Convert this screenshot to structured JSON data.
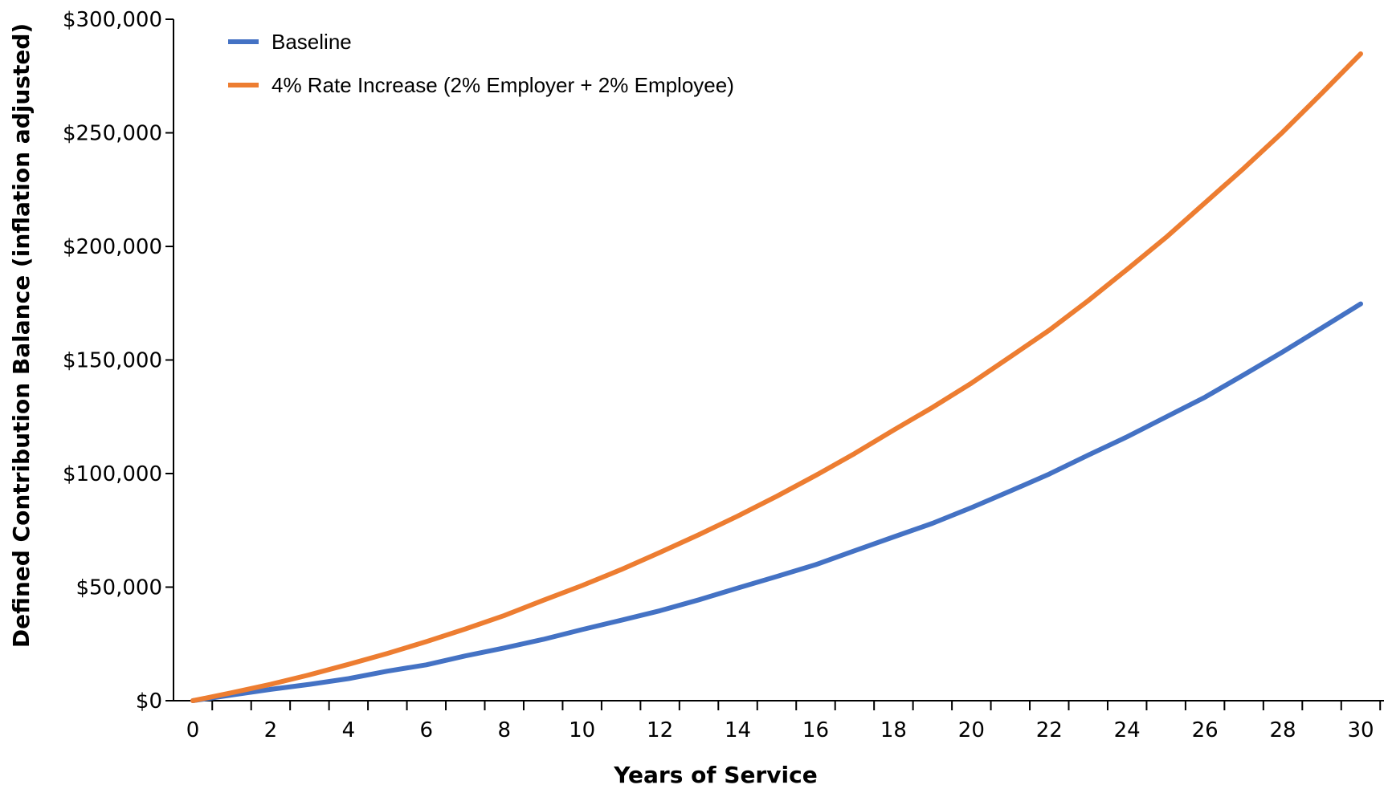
{
  "chart_data": {
    "type": "line",
    "xlabel": "Years of Service",
    "ylabel": "Defined Contribution Balance (inflation adjusted)",
    "xlim": [
      0,
      30
    ],
    "ylim": [
      0,
      300000
    ],
    "x_ticks": [
      0,
      2,
      4,
      6,
      8,
      10,
      12,
      14,
      16,
      18,
      20,
      22,
      24,
      26,
      28,
      30
    ],
    "x_tick_labels": [
      "0",
      "2",
      "4",
      "6",
      "8",
      "10",
      "12",
      "14",
      "16",
      "18",
      "20",
      "22",
      "24",
      "26",
      "28",
      "30"
    ],
    "y_ticks": [
      0,
      50000,
      100000,
      150000,
      200000,
      250000,
      300000
    ],
    "y_tick_labels": [
      "$0",
      "$50,000",
      "$100,000",
      "$150,000",
      "$200,000",
      "$250,000",
      "$300,000"
    ],
    "grid": false,
    "legend_position": "top-left",
    "x": [
      0,
      1,
      2,
      3,
      4,
      5,
      6,
      7,
      8,
      9,
      10,
      11,
      12,
      13,
      14,
      15,
      16,
      17,
      18,
      19,
      20,
      21,
      22,
      23,
      24,
      25,
      26,
      27,
      28,
      29,
      30
    ],
    "series": [
      {
        "name": "Baseline",
        "color": "#4472C4",
        "values": [
          0,
          2500,
          5000,
          7200,
          9700,
          13000,
          15800,
          19700,
          23200,
          27000,
          31300,
          35400,
          39600,
          44400,
          49600,
          54700,
          59900,
          66000,
          72100,
          78100,
          85000,
          92300,
          99800,
          108100,
          116200,
          124900,
          133600,
          143500,
          153600,
          164100,
          174700
        ]
      },
      {
        "name": "4% Rate Increase (2% Employer + 2% Employee)",
        "color": "#ED7D31",
        "values": [
          0,
          3500,
          7200,
          11400,
          16000,
          20800,
          26000,
          31600,
          37500,
          44200,
          50700,
          57700,
          65300,
          73100,
          81300,
          90000,
          99200,
          108800,
          119100,
          129100,
          139800,
          151400,
          163100,
          176100,
          189900,
          204000,
          219200,
          234400,
          250400,
          267400,
          284800
        ]
      }
    ]
  }
}
